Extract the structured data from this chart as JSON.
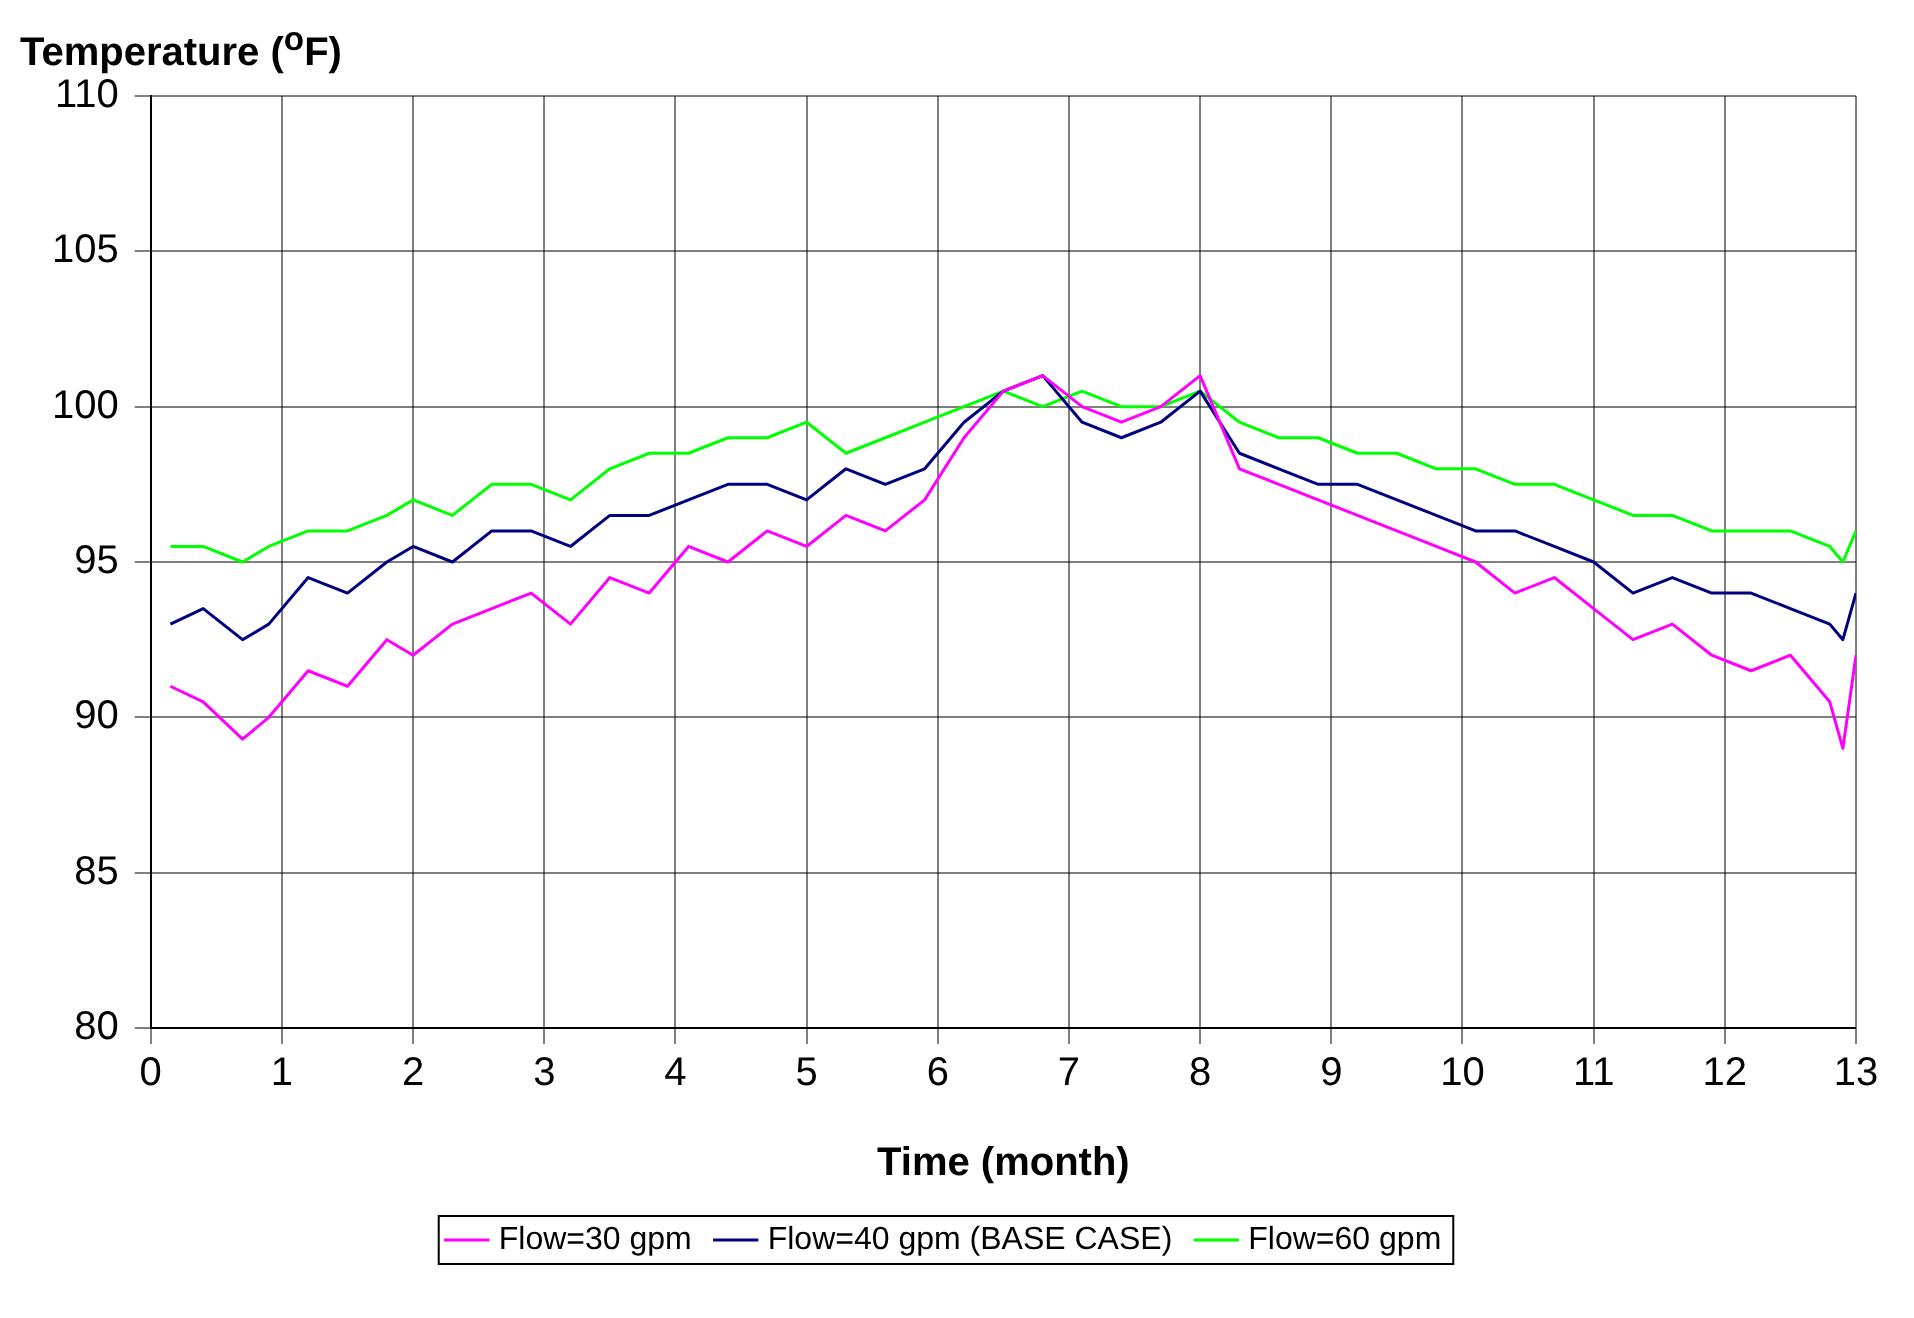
{
  "chart_data": {
    "type": "line",
    "xlabel": "Time (month)",
    "ylabel": "Temperature ($^{o}$F)",
    "xlim": [
      0,
      13
    ],
    "ylim": [
      80,
      110
    ],
    "xticks": [
      0,
      1,
      2,
      3,
      4,
      5,
      6,
      7,
      8,
      9,
      10,
      11,
      12,
      13
    ],
    "yticks": [
      80,
      85,
      90,
      95,
      100,
      105,
      110
    ],
    "grid": true,
    "legend": "bottom",
    "marker": "none",
    "line_style": "solid",
    "series": [
      {
        "name": "Flow=30 gpm",
        "color": "#ff00ff",
        "x": [
          0.15,
          0.4,
          0.7,
          0.9,
          1.2,
          1.5,
          1.8,
          2.0,
          2.3,
          2.6,
          2.9,
          3.2,
          3.5,
          3.8,
          4.1,
          4.4,
          4.7,
          5.0,
          5.3,
          5.6,
          5.9,
          6.2,
          6.5,
          6.8,
          7.1,
          7.4,
          7.7,
          8.0,
          8.3,
          8.6,
          8.9,
          9.2,
          9.5,
          9.8,
          10.1,
          10.4,
          10.7,
          11.0,
          11.3,
          11.6,
          11.9,
          12.2,
          12.5,
          12.8,
          12.9,
          13.0
        ],
        "values": [
          91,
          90.5,
          89.3,
          90,
          91.5,
          91,
          92.5,
          92,
          93,
          93.5,
          94,
          93,
          94.5,
          94,
          95.5,
          95,
          96,
          95.5,
          96.5,
          96,
          97,
          99,
          100.5,
          101,
          100,
          99.5,
          100,
          101,
          98,
          97.5,
          97,
          96.5,
          96,
          95.5,
          95,
          94,
          94.5,
          93.5,
          92.5,
          93,
          92,
          91.5,
          92,
          90.5,
          89,
          92
        ]
      },
      {
        "name": "Flow=40 gpm (BASE CASE)",
        "color": "#000080",
        "x": [
          0.15,
          0.4,
          0.7,
          0.9,
          1.2,
          1.5,
          1.8,
          2.0,
          2.3,
          2.6,
          2.9,
          3.2,
          3.5,
          3.8,
          4.1,
          4.4,
          4.7,
          5.0,
          5.3,
          5.6,
          5.9,
          6.2,
          6.5,
          6.8,
          7.1,
          7.4,
          7.7,
          8.0,
          8.3,
          8.6,
          8.9,
          9.2,
          9.5,
          9.8,
          10.1,
          10.4,
          10.7,
          11.0,
          11.3,
          11.6,
          11.9,
          12.2,
          12.5,
          12.8,
          12.9,
          13.0
        ],
        "values": [
          93,
          93.5,
          92.5,
          93,
          94.5,
          94,
          95,
          95.5,
          95,
          96,
          96,
          95.5,
          96.5,
          96.5,
          97,
          97.5,
          97.5,
          97,
          98,
          97.5,
          98,
          99.5,
          100.5,
          101,
          99.5,
          99,
          99.5,
          100.5,
          98.5,
          98,
          97.5,
          97.5,
          97,
          96.5,
          96,
          96,
          95.5,
          95,
          94,
          94.5,
          94,
          94,
          93.5,
          93,
          92.5,
          94
        ]
      },
      {
        "name": "Flow=60 gpm",
        "color": "#00ff00",
        "x": [
          0.15,
          0.4,
          0.7,
          0.9,
          1.2,
          1.5,
          1.8,
          2.0,
          2.3,
          2.6,
          2.9,
          3.2,
          3.5,
          3.8,
          4.1,
          4.4,
          4.7,
          5.0,
          5.3,
          5.6,
          5.9,
          6.2,
          6.5,
          6.8,
          7.1,
          7.4,
          7.7,
          8.0,
          8.3,
          8.6,
          8.9,
          9.2,
          9.5,
          9.8,
          10.1,
          10.4,
          10.7,
          11.0,
          11.3,
          11.6,
          11.9,
          12.2,
          12.5,
          12.8,
          12.9,
          13.0
        ],
        "values": [
          95.5,
          95.5,
          95,
          95.5,
          96,
          96,
          96.5,
          97,
          96.5,
          97.5,
          97.5,
          97,
          98,
          98.5,
          98.5,
          99,
          99,
          99.5,
          98.5,
          99,
          99.5,
          100,
          100.5,
          100,
          100.5,
          100,
          100,
          100.5,
          99.5,
          99,
          99,
          98.5,
          98.5,
          98,
          98,
          97.5,
          97.5,
          97,
          96.5,
          96.5,
          96,
          96,
          96,
          95.5,
          95,
          96
        ]
      }
    ]
  }
}
